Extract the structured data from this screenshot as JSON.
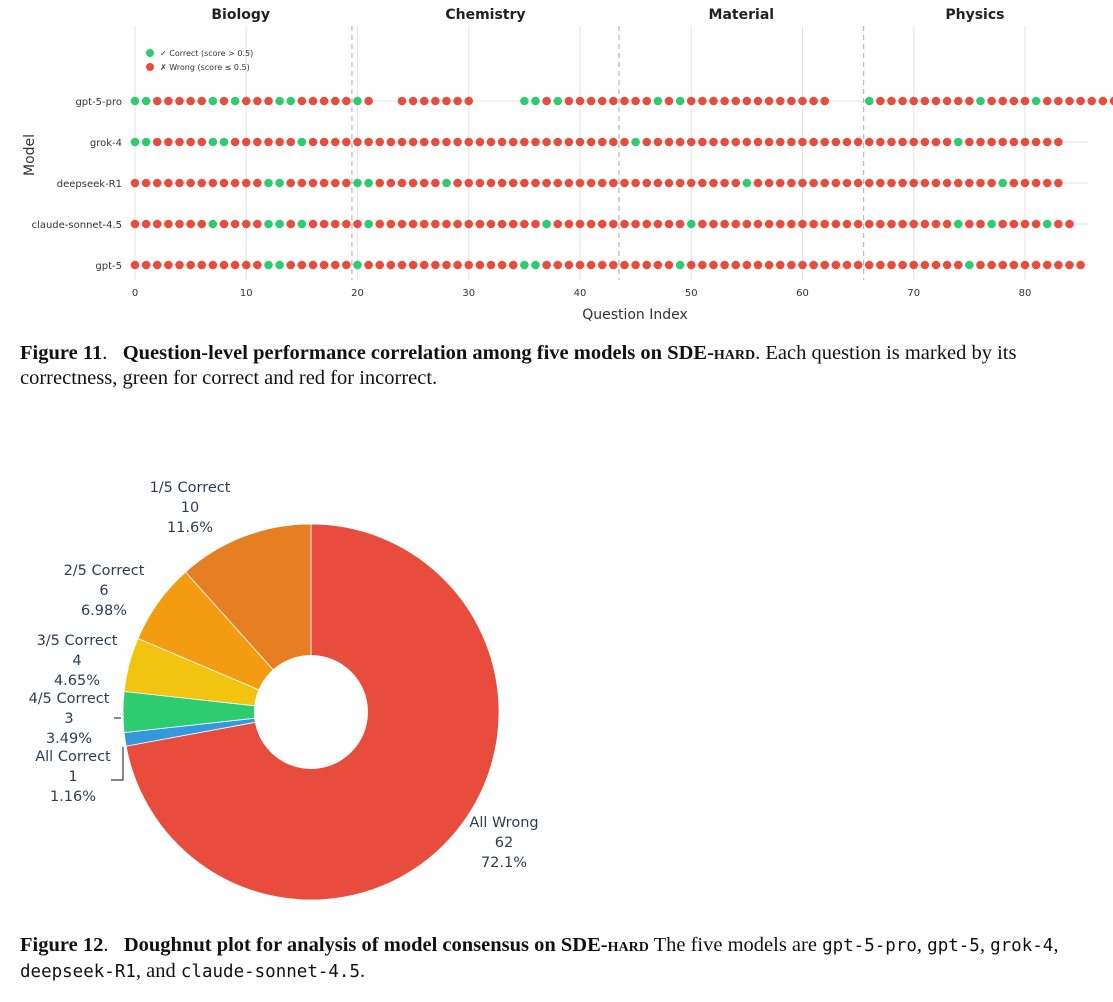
{
  "figure11": {
    "label": "Figure 11",
    "title": "Question-level performance correlation among five models on SDE-",
    "title_sc": "hard",
    "body": "Each question is marked by its correctness, green for correct and red for incorrect."
  },
  "figure12": {
    "label": "Figure 12",
    "title": "Doughnut plot for analysis of model consensus on SDE-",
    "title_sc": "hard",
    "body_pre": "The five models are",
    "models": [
      "gpt-5-pro",
      "gpt-5",
      "grok-4",
      "deepseek-R1",
      "claude-sonnet-4.5"
    ],
    "sep1": ",",
    "sep_and": ", and",
    "end": "."
  },
  "chart_data": [
    {
      "type": "scatter",
      "title": "",
      "xlabel": "Question Index",
      "ylabel": "Model",
      "xlim": [
        0,
        85
      ],
      "xticks": [
        0,
        10,
        20,
        30,
        40,
        50,
        60,
        70,
        80
      ],
      "sections": [
        {
          "name": "Biology",
          "range": [
            0,
            19
          ]
        },
        {
          "name": "Chemistry",
          "range": [
            20,
            43
          ]
        },
        {
          "name": "Material",
          "range": [
            44,
            65
          ]
        },
        {
          "name": "Physics",
          "range": [
            66,
            85
          ]
        }
      ],
      "legend": {
        "placement": "top-left",
        "correct": "✓ Correct (score > 0.5)",
        "wrong": "✗ Wrong (score ≤ 0.5)"
      },
      "colors": {
        "correct": "#2ecc71",
        "wrong": "#e74c3c",
        "grid": "#e3e3e3",
        "divider": "#aaaaaa"
      },
      "models": [
        "gpt-5-pro",
        "grok-4",
        "deepseek-R1",
        "claude-sonnet-4.5",
        "gpt-5"
      ],
      "rows": {
        "gpt-5-pro": "CCWWWWWCWCWWWCCWWWWWCW--WWWWWWW----CCWCWWWWWWWWCWCWWWWWWWWWWWWW---CWWWWWWWWWCWWWWCWWWWWWW",
        "grok-4": "CCWWWWWCCWWWWWWCWWWWWWWWWWWWWWWWWWWWWWWWWWWWWCWWWWWWWWWWWWWWWWWWWWWWWWWWWWCWWWWWWWWW",
        "deepseek-R1": "WWWWWWWWWWWWCCWWWWWWCCWWWWWWCWWWWWWWWWWWWWWWWWWWWWWWWWWCWWWWWWWWWWWWWWWWWWWWWWCWWWWW",
        "claude-sonnet-4.5": "WWWWWWWCWWWWCCWCWWWWWCWWWWWWWWWWWWWWWCWWWWWWWWWWWWCWWWWWWWWWWWWWWWWWWWWWWWCWWCWWWWCWW",
        "gpt-5": "WWWWWWWWWWWWCCWWWWWWCWWWWWWWWWWWWWWCCWWWWWWWWWWWWCWWWWWWWWWWWWWWWWWWWWWWWWWCWWWWWWWWWW"
      }
    },
    {
      "type": "pie",
      "hole": 0.3,
      "direction": "clockwise",
      "slices": [
        {
          "label": "All Wrong",
          "count": "62",
          "percent": "72.1%",
          "value": 62,
          "color": "#e74c3c"
        },
        {
          "label": "All Correct",
          "count": "1",
          "percent": "1.16%",
          "value": 1,
          "color": "#3498db"
        },
        {
          "label": "4/5 Correct",
          "count": "3",
          "percent": "3.49%",
          "value": 3,
          "color": "#2ecc71"
        },
        {
          "label": "3/5 Correct",
          "count": "4",
          "percent": "4.65%",
          "value": 4,
          "color": "#f1c40f"
        },
        {
          "label": "2/5 Correct",
          "count": "6",
          "percent": "6.98%",
          "value": 6,
          "color": "#f39c12"
        },
        {
          "label": "1/5 Correct",
          "count": "10",
          "percent": "11.6%",
          "value": 10,
          "color": "#e67e22"
        }
      ]
    }
  ]
}
